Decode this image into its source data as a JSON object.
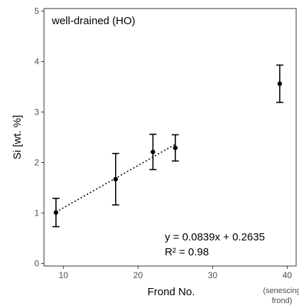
{
  "chart_data": {
    "type": "scatter",
    "title": "well-drained  (HO)",
    "xlabel": "Frond No.",
    "ylabel": "Si [wt. %]",
    "xlim": [
      7.4,
      41.2
    ],
    "ylim": [
      -0.05,
      5.05
    ],
    "xticks": [
      10,
      20,
      30,
      40
    ],
    "yticks": [
      0,
      1,
      2,
      3,
      4,
      5
    ],
    "grid": false,
    "points": [
      {
        "x": 9,
        "y": 1.01,
        "err_low": 0.73,
        "err_high": 1.29
      },
      {
        "x": 17,
        "y": 1.67,
        "err_low": 1.16,
        "err_high": 2.18
      },
      {
        "x": 22,
        "y": 2.21,
        "err_low": 1.86,
        "err_high": 2.56
      },
      {
        "x": 25,
        "y": 2.29,
        "err_low": 2.03,
        "err_high": 2.55
      },
      {
        "x": 39,
        "y": 3.56,
        "err_low": 3.19,
        "err_high": 3.93
      }
    ],
    "trendline": {
      "style": "dotted",
      "x_range": [
        9,
        25
      ],
      "slope": 0.0839,
      "intercept": 0.2635,
      "equation": "y = 0.0839x + 0.2635",
      "r_squared": "R² = 0.98"
    },
    "annotations": {
      "senescing_line1": "(senescing",
      "senescing_line2": "frond)"
    }
  }
}
